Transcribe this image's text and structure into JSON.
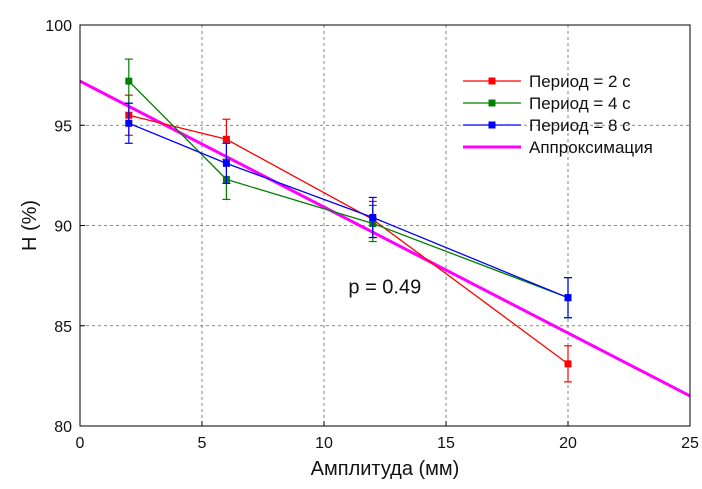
{
  "chart_data": {
    "type": "line",
    "xlabel": "Амплитуда (мм)",
    "ylabel": "H (%)",
    "xlim": [
      0,
      25
    ],
    "ylim": [
      80,
      100
    ],
    "xticks": [
      0,
      5,
      10,
      15,
      20,
      25
    ],
    "yticks": [
      80,
      85,
      90,
      95,
      100
    ],
    "grid": true,
    "legend_position": "top-right",
    "series": [
      {
        "name": "Период = 2 с",
        "color": "#ff0000",
        "x": [
          2,
          6,
          12,
          20
        ],
        "y": [
          95.5,
          94.3,
          90.3,
          83.1
        ],
        "yerr": [
          1.0,
          1.0,
          0.9,
          0.9
        ]
      },
      {
        "name": "Период = 4 с",
        "color": "#008000",
        "x": [
          2,
          6,
          12,
          20
        ],
        "y": [
          97.2,
          92.3,
          90.1,
          86.4
        ],
        "yerr": [
          1.1,
          1.0,
          0.9,
          1.0
        ]
      },
      {
        "name": "Период = 8 с",
        "color": "#0000ff",
        "x": [
          2,
          6,
          12,
          20
        ],
        "y": [
          95.1,
          93.1,
          90.4,
          86.4
        ],
        "yerr": [
          1.0,
          1.0,
          1.0,
          1.0
        ]
      }
    ],
    "fit": {
      "name": "Аппроксимация",
      "color": "#ff00ff",
      "x": [
        0,
        25
      ],
      "y": [
        97.2,
        81.5
      ]
    },
    "annotations": [
      {
        "text": "p = 0.49",
        "x": 11,
        "y": 86.6
      }
    ]
  }
}
